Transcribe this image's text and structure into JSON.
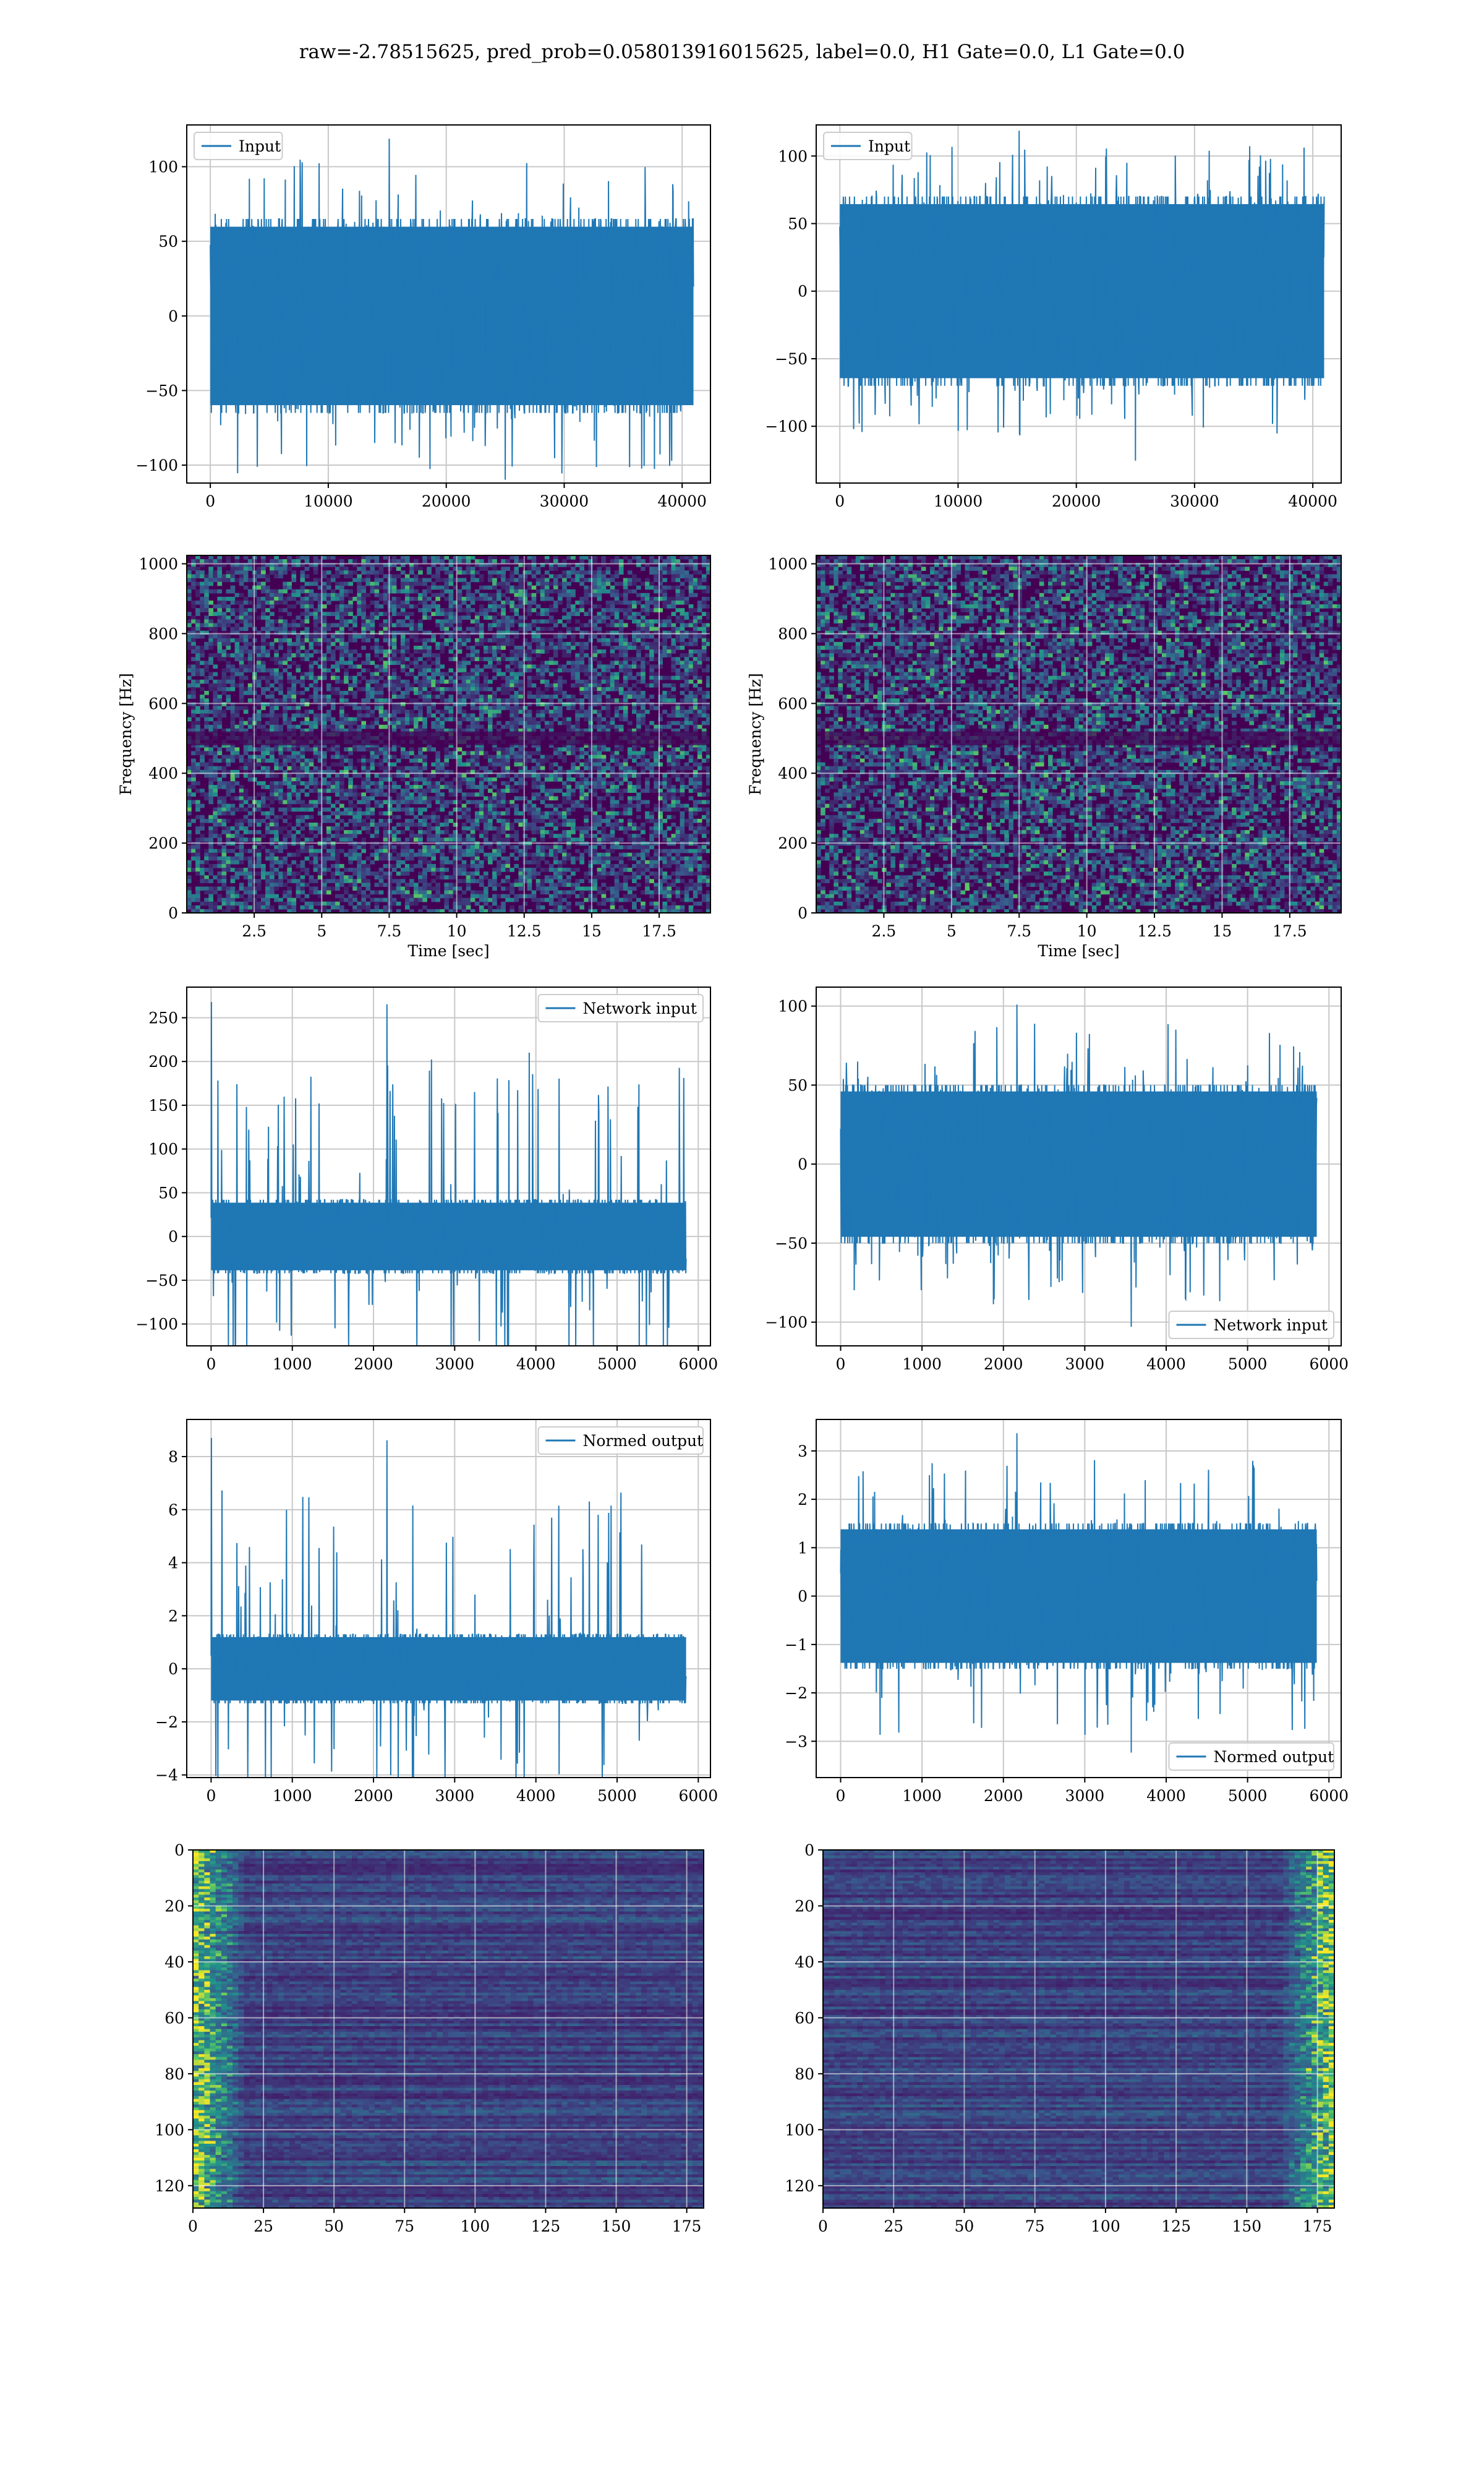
{
  "figure": {
    "title": "raw=-2.78515625, pred_prob=0.058013916015625, label=0.0, H1 Gate=0.0, L1 Gate=0.0"
  },
  "colors": {
    "line": "#1f77b4",
    "grid": "#c8c8c8",
    "viridis_low": "#440154",
    "viridis_mid": "#21918c",
    "viridis_high": "#fde725"
  },
  "chart_data": [
    {
      "id": "r1c1",
      "type": "line",
      "legend": [
        "Input"
      ],
      "legend_loc": "upper-left",
      "xlim": [
        -2000,
        42400
      ],
      "ylim": [
        -112,
        128
      ],
      "xticks": [
        0,
        10000,
        20000,
        30000,
        40000
      ],
      "yticks": [
        -100,
        -50,
        0,
        50,
        100
      ],
      "x_range": [
        0,
        40960
      ],
      "noise_amplitude": 65,
      "peak_max": 120,
      "peak_min": -112,
      "xlabel": "",
      "ylabel": "",
      "grid": true
    },
    {
      "id": "r1c2",
      "type": "line",
      "legend": [
        "Input"
      ],
      "legend_loc": "upper-left",
      "xlim": [
        -2000,
        42400
      ],
      "ylim": [
        -142,
        123
      ],
      "xticks": [
        0,
        10000,
        20000,
        30000,
        40000
      ],
      "yticks": [
        -100,
        -50,
        0,
        50,
        100
      ],
      "x_range": [
        0,
        40960
      ],
      "noise_amplitude": 70,
      "peak_max": 120,
      "peak_min": -128,
      "xlabel": "",
      "ylabel": "",
      "grid": true
    },
    {
      "id": "r2c1",
      "type": "heatmap",
      "xlim": [
        0,
        19.4
      ],
      "ylim": [
        0,
        1024
      ],
      "xticks": [
        2.5,
        5.0,
        7.5,
        10.0,
        12.5,
        15.0,
        17.5
      ],
      "yticks": [
        0,
        200,
        400,
        600,
        800,
        1000
      ],
      "xlabel": "Time [sec]",
      "ylabel": "Frequency [Hz]",
      "grid": true
    },
    {
      "id": "r2c2",
      "type": "heatmap",
      "xlim": [
        0,
        19.4
      ],
      "ylim": [
        0,
        1024
      ],
      "xticks": [
        2.5,
        5.0,
        7.5,
        10.0,
        12.5,
        15.0,
        17.5
      ],
      "yticks": [
        0,
        200,
        400,
        600,
        800,
        1000
      ],
      "xlabel": "Time [sec]",
      "ylabel": "Frequency [Hz]",
      "grid": true
    },
    {
      "id": "r3c1",
      "type": "line",
      "legend": [
        "Network input"
      ],
      "legend_loc": "upper-right",
      "xlim": [
        -300,
        6150
      ],
      "ylim": [
        -125,
        285
      ],
      "xticks": [
        0,
        1000,
        2000,
        3000,
        4000,
        5000,
        6000
      ],
      "yticks": [
        -100,
        -50,
        0,
        50,
        100,
        150,
        200,
        250
      ],
      "x_range": [
        0,
        5850
      ],
      "noise_amplitude": 42,
      "peak_max": 268,
      "peak_min": -105,
      "xlabel": "",
      "ylabel": "",
      "grid": true
    },
    {
      "id": "r3c2",
      "type": "line",
      "legend": [
        "Network input"
      ],
      "legend_loc": "lower-right",
      "xlim": [
        -300,
        6150
      ],
      "ylim": [
        -115,
        112
      ],
      "xticks": [
        0,
        1000,
        2000,
        3000,
        4000,
        5000,
        6000
      ],
      "yticks": [
        -100,
        -50,
        0,
        50,
        100
      ],
      "x_range": [
        0,
        5850
      ],
      "noise_amplitude": 50,
      "peak_max": 102,
      "peak_min": -105,
      "xlabel": "",
      "ylabel": "",
      "grid": true
    },
    {
      "id": "r4c1",
      "type": "line",
      "legend": [
        "Normed output"
      ],
      "legend_loc": "upper-right",
      "xlim": [
        -300,
        6150
      ],
      "ylim": [
        -4.1,
        9.4
      ],
      "xticks": [
        0,
        1000,
        2000,
        3000,
        4000,
        5000,
        6000
      ],
      "yticks": [
        -4,
        -2,
        0,
        2,
        4,
        6,
        8
      ],
      "x_range": [
        0,
        5850
      ],
      "noise_amplitude": 1.3,
      "peak_max": 8.7,
      "peak_min": -3.5,
      "xlabel": "",
      "ylabel": "",
      "grid": true
    },
    {
      "id": "r4c2",
      "type": "line",
      "legend": [
        "Normed output"
      ],
      "legend_loc": "lower-right",
      "xlim": [
        -300,
        6150
      ],
      "ylim": [
        -3.75,
        3.65
      ],
      "xticks": [
        0,
        1000,
        2000,
        3000,
        4000,
        5000,
        6000
      ],
      "yticks": [
        -3,
        -2,
        -1,
        0,
        1,
        2,
        3
      ],
      "x_range": [
        0,
        5850
      ],
      "noise_amplitude": 1.5,
      "peak_max": 3.4,
      "peak_min": -3.3,
      "xlabel": "",
      "ylabel": "",
      "grid": true
    },
    {
      "id": "r5c1",
      "type": "heatmap",
      "xlim": [
        0,
        181
      ],
      "ylim": [
        128,
        0
      ],
      "xticks": [
        0,
        25,
        50,
        75,
        100,
        125,
        150,
        175
      ],
      "yticks": [
        0,
        20,
        40,
        60,
        80,
        100,
        120
      ],
      "bright_side": "left",
      "xlabel": "",
      "ylabel": "",
      "grid": true
    },
    {
      "id": "r5c2",
      "type": "heatmap",
      "xlim": [
        0,
        181
      ],
      "ylim": [
        128,
        0
      ],
      "xticks": [
        0,
        25,
        50,
        75,
        100,
        125,
        150,
        175
      ],
      "yticks": [
        0,
        20,
        40,
        60,
        80,
        100,
        120
      ],
      "bright_side": "right",
      "xlabel": "",
      "ylabel": "",
      "grid": true
    }
  ]
}
